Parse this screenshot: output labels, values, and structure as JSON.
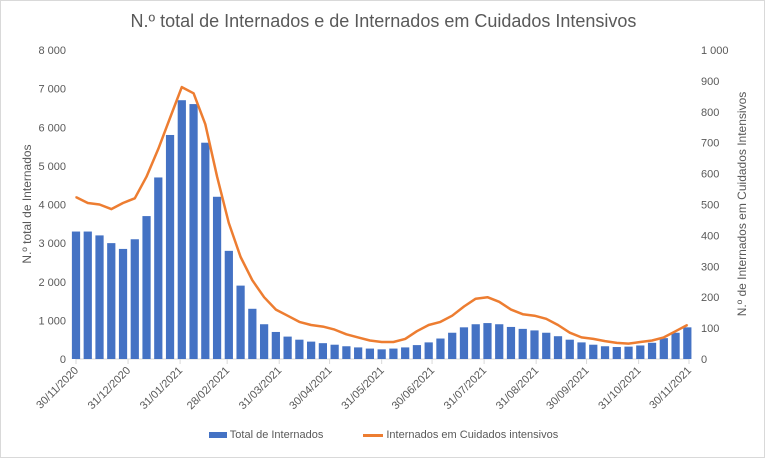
{
  "chart_data": {
    "type": "bar+line",
    "title": "N.º total de Internados e de Internados em Cuidados Intensivos",
    "ylabel_left": "N.º total de Internados",
    "ylabel_right": "N.º de Internados em Cuidados Intensivos",
    "ylim_left": [
      0,
      8000
    ],
    "ylim_right": [
      0,
      1000
    ],
    "yticks_left": [
      "0",
      "1 000",
      "2 000",
      "3 000",
      "4 000",
      "5 000",
      "6 000",
      "7 000",
      "8 000"
    ],
    "yticks_right": [
      "0",
      "100",
      "200",
      "300",
      "400",
      "500",
      "600",
      "700",
      "800",
      "900",
      "1 000"
    ],
    "xticks": [
      "30/11/2020",
      "31/12/2020",
      "31/01/2021",
      "28/02/2021",
      "31/03/2021",
      "30/04/2021",
      "31/05/2021",
      "30/06/2021",
      "31/07/2021",
      "31/08/2021",
      "30/09/2021",
      "31/10/2021",
      "30/11/2021"
    ],
    "x_start": "30/11/2020",
    "x_step_days": 7,
    "grid": false,
    "legend_position": "bottom",
    "series": [
      {
        "name": "Total de Internados",
        "type": "bar",
        "axis": "left",
        "color": "#4472C4",
        "values": [
          3300,
          3300,
          3200,
          3000,
          2850,
          3100,
          3700,
          4700,
          5800,
          6700,
          6600,
          5600,
          4200,
          2800,
          1900,
          1300,
          900,
          700,
          580,
          500,
          450,
          410,
          370,
          330,
          300,
          270,
          250,
          270,
          300,
          360,
          430,
          530,
          680,
          820,
          900,
          930,
          900,
          830,
          780,
          740,
          680,
          590,
          500,
          430,
          370,
          330,
          310,
          320,
          350,
          420,
          540,
          680,
          820
        ]
      },
      {
        "name": "Internados em Cuidados intensivos",
        "type": "line",
        "axis": "right",
        "color": "#ED7D31",
        "values": [
          524,
          505,
          500,
          485,
          505,
          520,
          590,
          680,
          780,
          880,
          860,
          760,
          590,
          440,
          330,
          255,
          200,
          160,
          140,
          120,
          110,
          105,
          95,
          80,
          70,
          60,
          55,
          55,
          65,
          90,
          110,
          120,
          140,
          170,
          195,
          200,
          185,
          160,
          145,
          140,
          130,
          110,
          85,
          70,
          65,
          58,
          52,
          50,
          55,
          60,
          70,
          90,
          110
        ]
      }
    ]
  }
}
